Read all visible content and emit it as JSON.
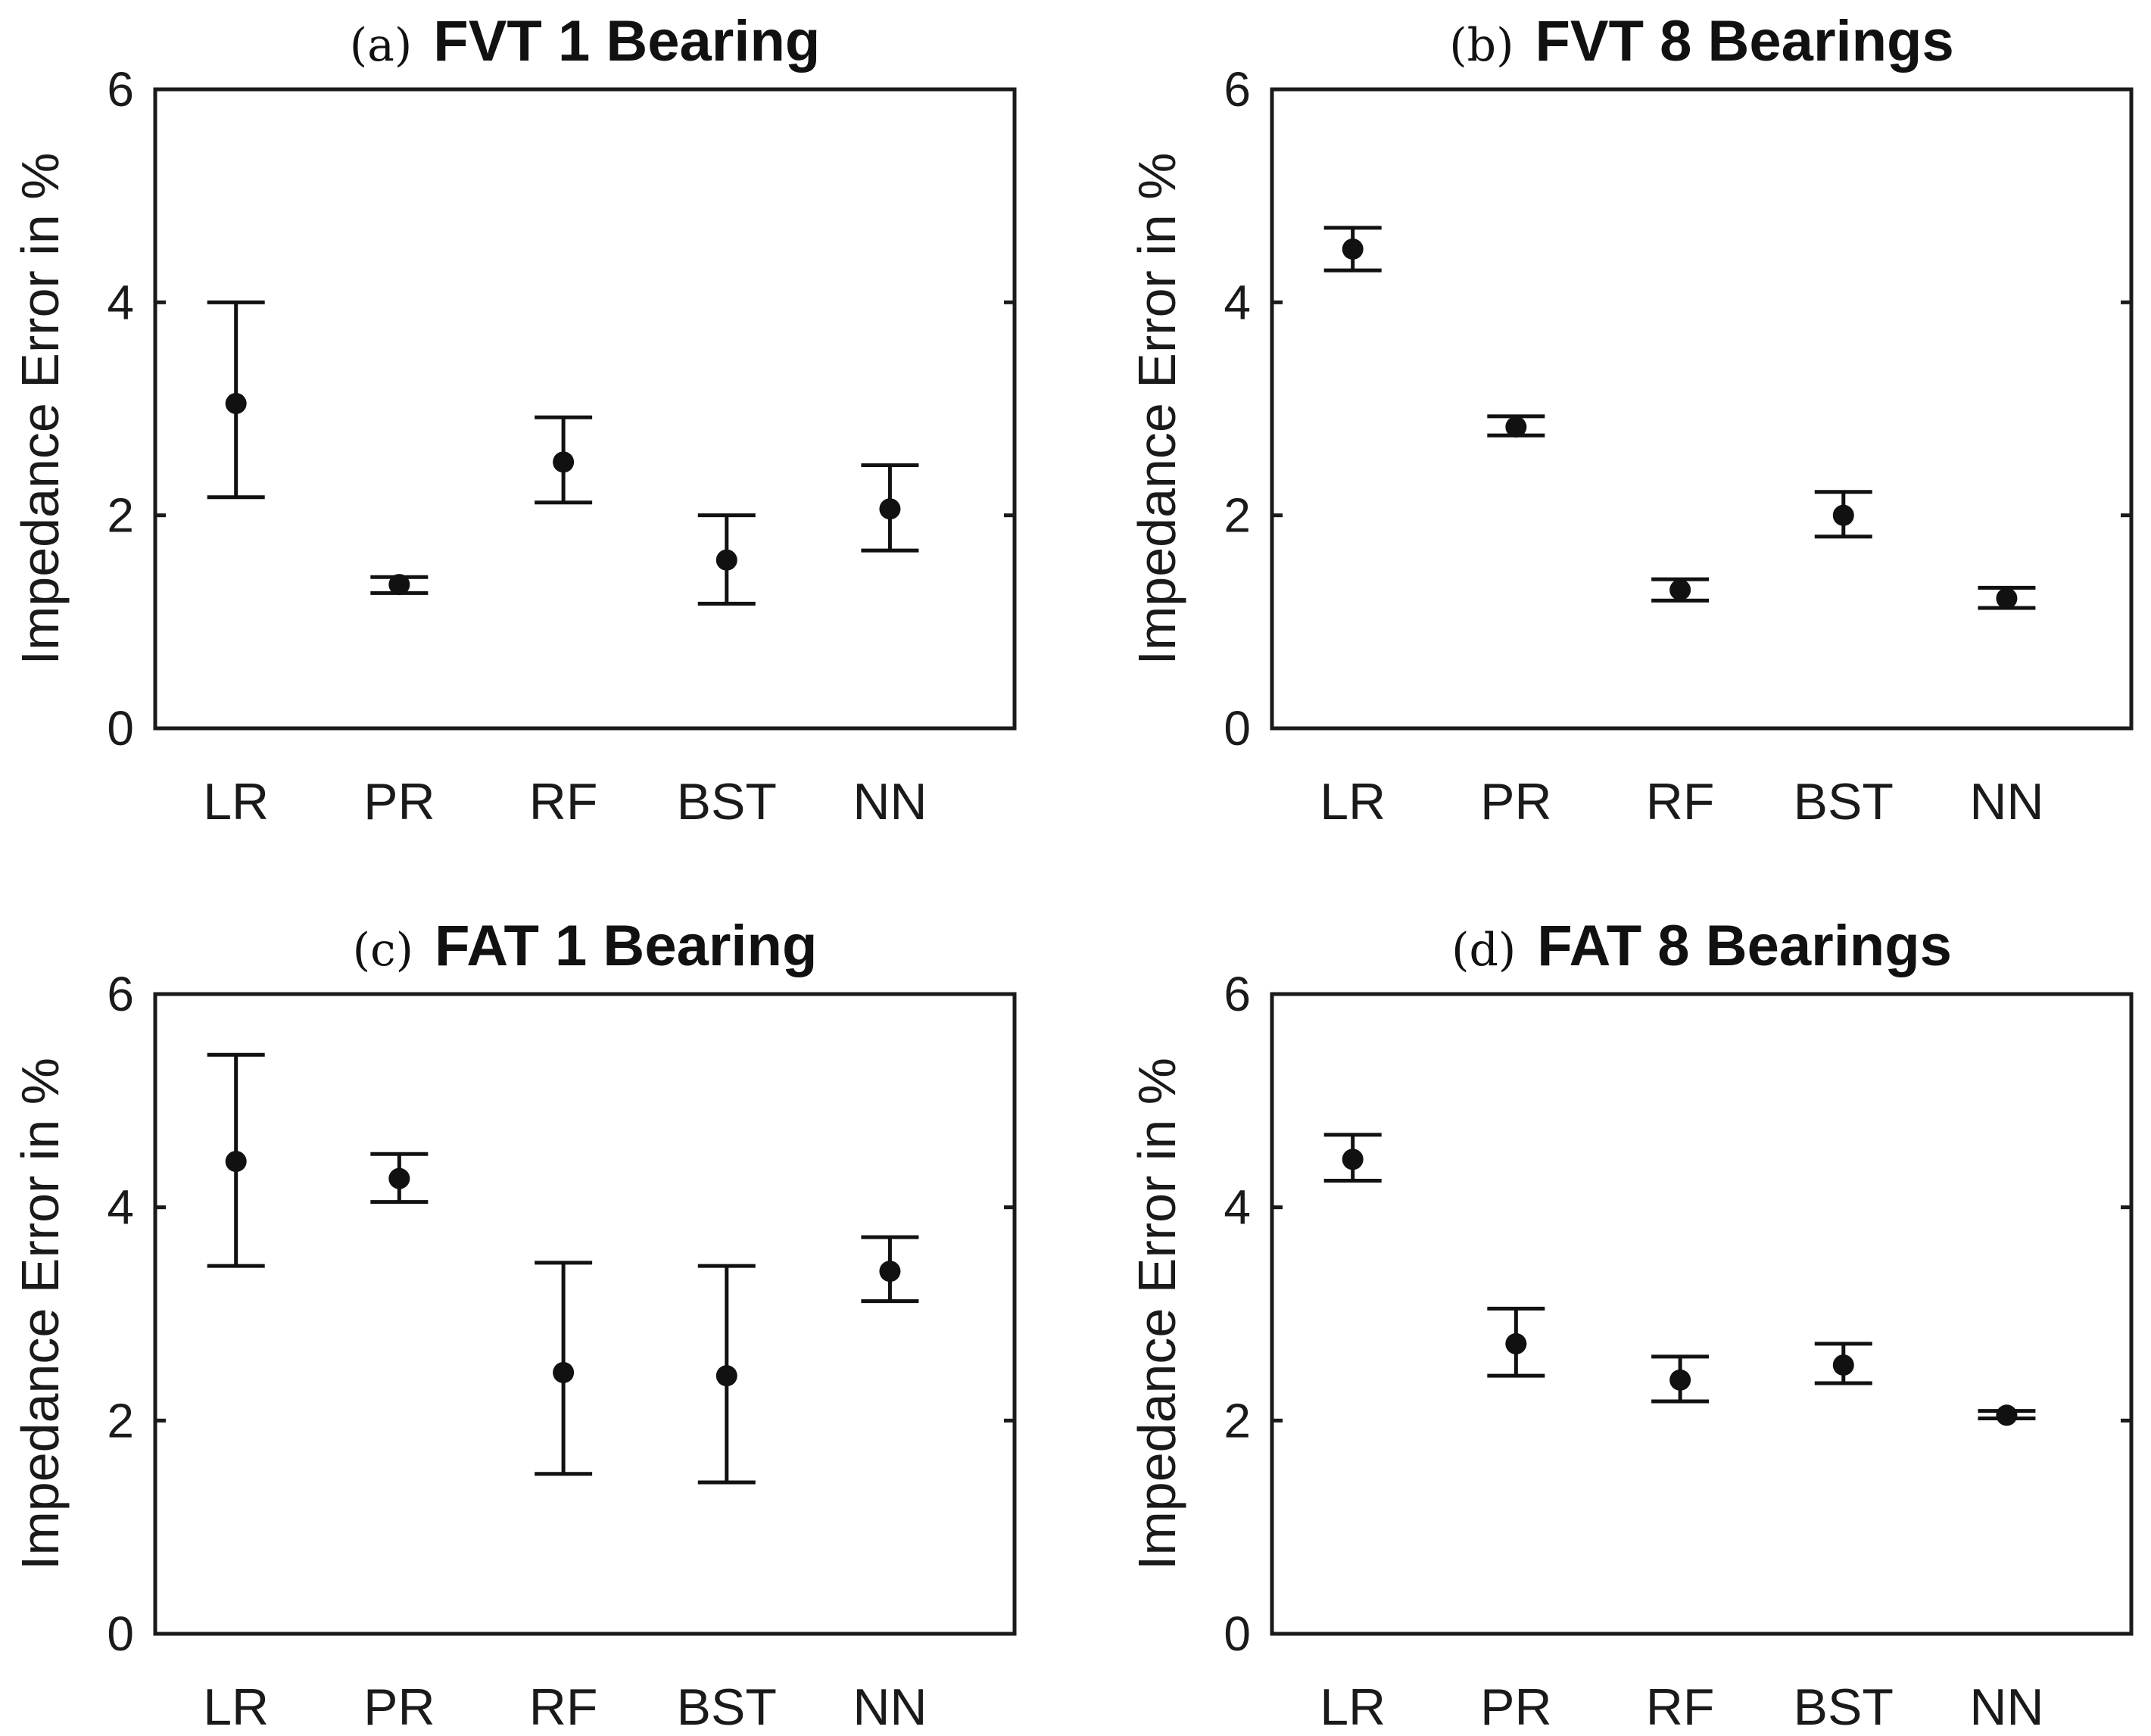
{
  "chart_data": [
    {
      "type": "scatter",
      "panel_label": "(a)",
      "title": "FVT 1 Bearing",
      "ylabel": "Impedance Error in %",
      "ylim": [
        0,
        6
      ],
      "yticks": [
        "0",
        "2",
        "4",
        "6"
      ],
      "categories": [
        "LR",
        "PR",
        "RF",
        "BST",
        "NN"
      ],
      "values": [
        3.05,
        1.35,
        2.5,
        1.58,
        2.06
      ],
      "error_low": [
        2.17,
        1.27,
        2.12,
        1.17,
        1.67
      ],
      "error_high": [
        4.0,
        1.42,
        2.92,
        2.0,
        2.47
      ]
    },
    {
      "type": "scatter",
      "panel_label": "(b)",
      "title": "FVT 8 Bearings",
      "ylabel": "Impedance Error in %",
      "ylim": [
        0,
        6
      ],
      "yticks": [
        "0",
        "2",
        "4",
        "6"
      ],
      "categories": [
        "LR",
        "PR",
        "RF",
        "BST",
        "NN"
      ],
      "values": [
        4.5,
        2.83,
        1.3,
        2.0,
        1.22
      ],
      "error_low": [
        4.3,
        2.75,
        1.2,
        1.8,
        1.13
      ],
      "error_high": [
        4.7,
        2.93,
        1.4,
        2.22,
        1.32
      ]
    },
    {
      "type": "scatter",
      "panel_label": "(c)",
      "title": "FAT 1 Bearing",
      "ylabel": "Impedance Error in %",
      "ylim": [
        0,
        6
      ],
      "yticks": [
        "0",
        "2",
        "4",
        "6"
      ],
      "categories": [
        "LR",
        "PR",
        "RF",
        "BST",
        "NN"
      ],
      "values": [
        4.43,
        4.27,
        2.45,
        2.42,
        3.4
      ],
      "error_low": [
        3.45,
        4.05,
        1.5,
        1.42,
        3.12
      ],
      "error_high": [
        5.43,
        4.5,
        3.48,
        3.45,
        3.72
      ]
    },
    {
      "type": "scatter",
      "panel_label": "(d)",
      "title": "FAT 8 Bearings",
      "ylabel": "Impedance Error in %",
      "ylim": [
        0,
        6
      ],
      "yticks": [
        "0",
        "2",
        "4",
        "6"
      ],
      "categories": [
        "LR",
        "PR",
        "RF",
        "BST",
        "NN"
      ],
      "values": [
        4.45,
        2.72,
        2.38,
        2.52,
        2.05
      ],
      "error_low": [
        4.25,
        2.42,
        2.18,
        2.35,
        2.02
      ],
      "error_high": [
        4.68,
        3.05,
        2.6,
        2.72,
        2.09
      ]
    }
  ]
}
